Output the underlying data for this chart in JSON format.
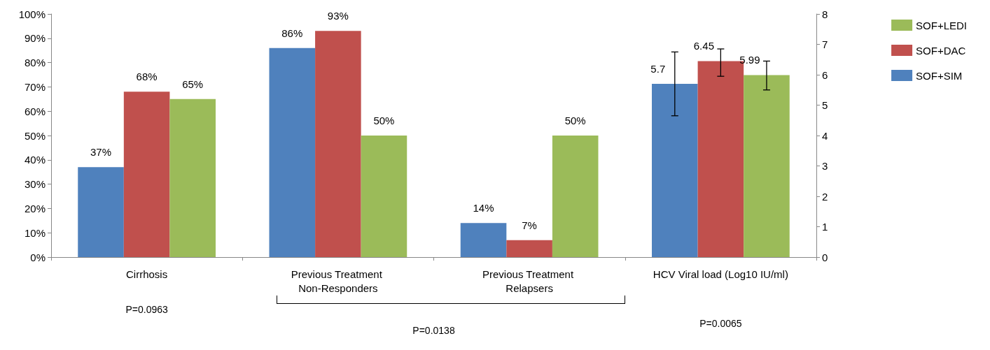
{
  "chart_data": {
    "type": "bar",
    "categories": [
      "Cirrhosis",
      "Previous Treatment Non-Responders",
      "Previous Treatment Relapsers",
      "HCV Viral load (Log10 IU/ml)"
    ],
    "series": [
      {
        "name": "SOF+SIM",
        "color": "#4f81bd",
        "values": [
          37,
          86,
          14,
          null
        ],
        "value_labels": [
          "37%",
          "86%",
          "14%",
          null
        ]
      },
      {
        "name": "SOF+DAC",
        "color": "#c0504d",
        "values": [
          68,
          93,
          7,
          null
        ],
        "value_labels": [
          "68%",
          "93%",
          "7%",
          null
        ]
      },
      {
        "name": "SOF+LEDI",
        "color": "#9bbb59",
        "values": [
          65,
          50,
          50,
          null
        ],
        "value_labels": [
          "65%",
          "50%",
          "50%",
          null
        ]
      },
      {
        "color": "#4f81bd",
        "axis": "y2",
        "values": [
          null,
          null,
          null,
          5.7
        ],
        "value_labels": [
          null,
          null,
          null,
          "5.7"
        ],
        "errors": [
          null,
          null,
          null,
          [
            4.65,
            6.75
          ]
        ]
      },
      {
        "color": "#c0504d",
        "axis": "y2",
        "values": [
          null,
          null,
          null,
          6.45
        ],
        "value_labels": [
          null,
          null,
          null,
          "6.45"
        ],
        "errors": [
          null,
          null,
          null,
          [
            5.95,
            6.85
          ]
        ]
      },
      {
        "color": "#9bbb59",
        "axis": "y2",
        "values": [
          null,
          null,
          null,
          5.99
        ],
        "value_labels": [
          null,
          null,
          null,
          "5.99"
        ],
        "errors": [
          null,
          null,
          null,
          [
            5.5,
            6.45
          ]
        ]
      }
    ],
    "ylim": [
      0,
      100
    ],
    "yticks": [
      {
        "value": 0,
        "label": "0%"
      },
      {
        "value": 10,
        "label": "10%"
      },
      {
        "value": 20,
        "label": "20%"
      },
      {
        "value": 30,
        "label": "30%"
      },
      {
        "value": 40,
        "label": "40%"
      },
      {
        "value": 50,
        "label": "50%"
      },
      {
        "value": 60,
        "label": "60%"
      },
      {
        "value": 70,
        "label": "70%"
      },
      {
        "value": 80,
        "label": "80%"
      },
      {
        "value": 90,
        "label": "90%"
      },
      {
        "value": 100,
        "label": "100%"
      }
    ],
    "y2lim": [
      0,
      8
    ],
    "y2ticks": [
      0,
      1,
      2,
      3,
      4,
      5,
      6,
      7,
      8
    ],
    "grid": false,
    "legend": "right",
    "annotations": [
      "P=0.0963",
      "P=0.0138",
      "P=0.0065"
    ]
  }
}
